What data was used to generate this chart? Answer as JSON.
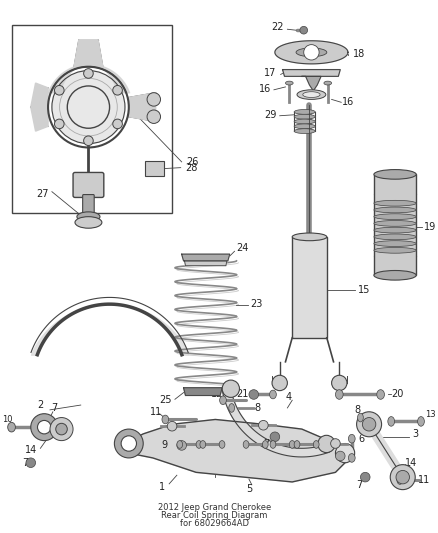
{
  "title": "2012 Jeep Grand Cherokee\nRear Coil Spring Diagram\nfor 68029664AD",
  "bg_color": "#ffffff",
  "lc": "#444444",
  "gray1": "#888888",
  "gray2": "#aaaaaa",
  "gray3": "#cccccc",
  "gray4": "#dddddd",
  "dark": "#555555",
  "black": "#222222"
}
